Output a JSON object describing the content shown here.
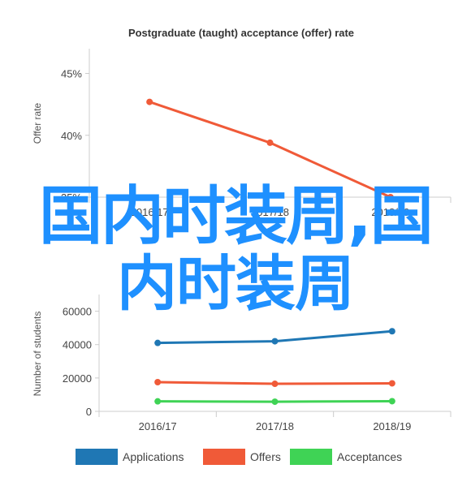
{
  "chart_data": [
    {
      "type": "line",
      "title": "Postgraduate (taught) acceptance (offer) rate",
      "ylabel": "Offer rate",
      "xlabel": "",
      "categories": [
        "2016/17",
        "2017/18",
        "2018/19"
      ],
      "y_ticks": [
        "35%",
        "40%",
        "45%"
      ],
      "ylim": [
        35,
        47
      ],
      "grid": false,
      "series": [
        {
          "values": [
            42.7,
            39.4,
            35.0
          ],
          "color": "#f05a38"
        }
      ]
    },
    {
      "type": "line",
      "title": "",
      "ylabel": "Number of students",
      "xlabel": "",
      "categories": [
        "2016/17",
        "2017/18",
        "2018/19"
      ],
      "y_ticks": [
        "0",
        "20000",
        "40000",
        "60000"
      ],
      "ylim": [
        0,
        70000
      ],
      "grid": false,
      "legend_position": "bottom",
      "series": [
        {
          "name": "Applications",
          "values": [
            41000,
            42000,
            48000
          ],
          "color": "#1f77b4"
        },
        {
          "name": "Offers",
          "values": [
            17500,
            16500,
            16800
          ],
          "color": "#f05a38"
        },
        {
          "name": "Acceptances",
          "values": [
            6000,
            5800,
            6100
          ],
          "color": "#3fd355"
        }
      ]
    }
  ],
  "overlay_text": {
    "line1": "国内时装周,国",
    "line2": "内时装周"
  }
}
